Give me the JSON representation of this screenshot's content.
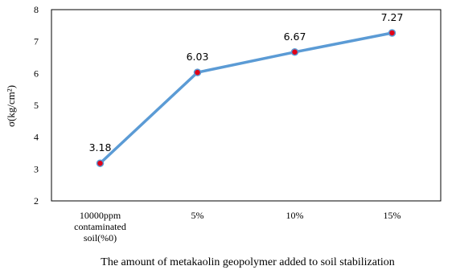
{
  "chart_data": {
    "type": "line",
    "categories": [
      "10000ppm contaminated soil(%0)",
      "5%",
      "10%",
      "15%"
    ],
    "category_lines": [
      [
        "10000ppm",
        "contaminated",
        "soil(%0)"
      ],
      [
        "5%"
      ],
      [
        "10%"
      ],
      [
        "15%"
      ]
    ],
    "series": [
      {
        "values": [
          3.18,
          6.03,
          6.67,
          7.27
        ]
      }
    ],
    "data_labels": [
      "3.18",
      "6.03",
      "6.67",
      "7.27"
    ],
    "ylim": [
      2,
      8
    ],
    "yticks": [
      2,
      3,
      4,
      5,
      6,
      7,
      8
    ],
    "ylabel": "σ(kg/cm²)",
    "xlabel": "The amount of metakaolin geopolymer added to soil stabilization",
    "grid": false,
    "line_color": "#5b9bd5",
    "marker_color": "#e00018"
  }
}
